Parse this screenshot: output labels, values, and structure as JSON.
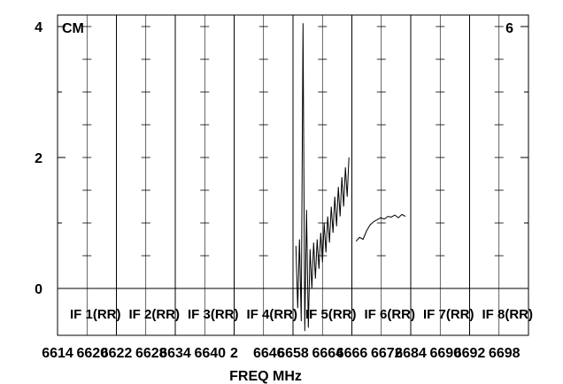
{
  "chart_data": {
    "type": "line",
    "title": "",
    "corner_left": "CM",
    "corner_right": "6",
    "xlabel": "FREQ MHz",
    "ylabel": "",
    "ylim": [
      -0.65,
      4.1
    ],
    "y_ticks": [
      "0",
      "2",
      "4"
    ],
    "grid": true,
    "panels": [
      {
        "label": "IF 1(RR)",
        "ticks": [
          "6614",
          "6620"
        ]
      },
      {
        "label": "IF 2(RR)",
        "ticks": [
          "6622",
          "6628"
        ]
      },
      {
        "label": "IF 3(RR)",
        "ticks": [
          "6634",
          "6640"
        ]
      },
      {
        "label": "IF 4(RR)",
        "ticks": [
          "2",
          "6646"
        ]
      },
      {
        "label": "IF 5(RR)",
        "ticks": [
          "6658",
          "6664"
        ]
      },
      {
        "label": "IF 6(RR)",
        "ticks": [
          "6666",
          "6672"
        ]
      },
      {
        "label": "IF 7(RR)",
        "ticks": [
          "6684",
          "6690"
        ]
      },
      {
        "label": "IF 8(RR)",
        "ticks": [
          "6692",
          "6698"
        ]
      }
    ],
    "x_tick_labels": [
      "6614",
      "6620",
      "6622",
      "6628",
      "6634",
      "6640",
      "2",
      "6646",
      "6658",
      "6664",
      "6666",
      "6672",
      "6684",
      "6690",
      "6692",
      "6698"
    ],
    "series": [
      {
        "panel": 5,
        "x": [
          0.05,
          0.08,
          0.11,
          0.14,
          0.17,
          0.2,
          0.23,
          0.26,
          0.29,
          0.32,
          0.35,
          0.38,
          0.41,
          0.44,
          0.47,
          0.5,
          0.53,
          0.56,
          0.59,
          0.62,
          0.65,
          0.68,
          0.71,
          0.74,
          0.77,
          0.8,
          0.83,
          0.86,
          0.89,
          0.92,
          0.95
        ],
        "y": [
          0.65,
          -0.3,
          0.75,
          -0.5,
          4.05,
          -0.65,
          1.2,
          -0.6,
          0.6,
          0.0,
          0.7,
          0.15,
          0.75,
          0.3,
          0.85,
          0.4,
          1.0,
          0.55,
          1.1,
          0.7,
          1.25,
          0.85,
          1.4,
          0.95,
          1.55,
          1.1,
          1.7,
          1.25,
          1.85,
          1.4,
          2.0
        ]
      },
      {
        "panel": 6,
        "x": [
          0.07,
          0.13,
          0.19,
          0.25,
          0.31,
          0.37,
          0.43,
          0.49,
          0.55,
          0.61,
          0.67,
          0.73,
          0.79,
          0.85,
          0.91
        ],
        "y": [
          0.72,
          0.78,
          0.75,
          0.88,
          0.97,
          1.02,
          1.05,
          1.08,
          1.06,
          1.1,
          1.09,
          1.12,
          1.08,
          1.13,
          1.1
        ]
      }
    ]
  }
}
